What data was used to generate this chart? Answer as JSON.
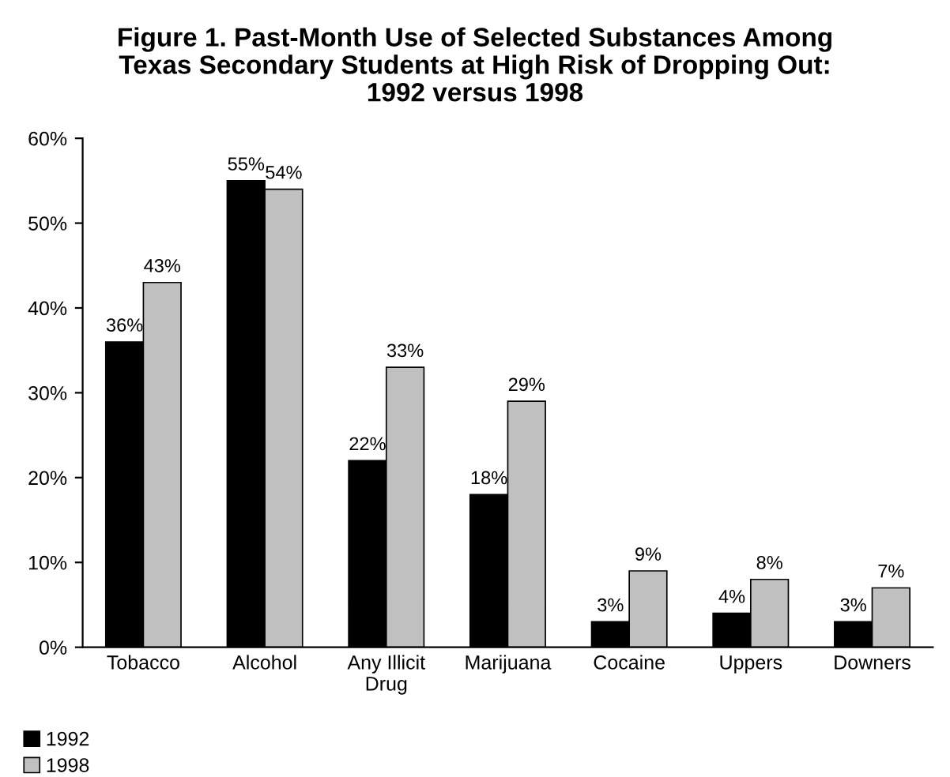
{
  "chart_data": {
    "type": "bar",
    "title": "Figure 1. Past-Month Use of Selected Substances Among\nTexas Secondary Students at High Risk of Dropping Out:\n1992 versus 1998",
    "categories": [
      "Tobacco",
      "Alcohol",
      "Any Illicit Drug",
      "Marijuana",
      "Cocaine",
      "Uppers",
      "Downers"
    ],
    "series": [
      {
        "name": "1992",
        "color": "#000000",
        "values": [
          36,
          55,
          22,
          18,
          3,
          4,
          3
        ],
        "value_labels": [
          "36%",
          "55%",
          "22%",
          "18%",
          "3%",
          "4%",
          "3%"
        ]
      },
      {
        "name": "1998",
        "color": "#c0c0c0",
        "values": [
          43,
          54,
          33,
          29,
          9,
          8,
          7
        ],
        "value_labels": [
          "43%",
          "54%",
          "33%",
          "29%",
          "9%",
          "8%",
          "7%"
        ]
      }
    ],
    "ylim": [
      0,
      60
    ],
    "yticks": [
      {
        "value": 0,
        "label": "0%"
      },
      {
        "value": 10,
        "label": "10%"
      },
      {
        "value": 20,
        "label": "20%"
      },
      {
        "value": 30,
        "label": "30%"
      },
      {
        "value": 40,
        "label": "40%"
      },
      {
        "value": 50,
        "label": "50%"
      },
      {
        "value": 60,
        "label": "60%"
      }
    ],
    "grid": false,
    "legend": "bottom left"
  }
}
